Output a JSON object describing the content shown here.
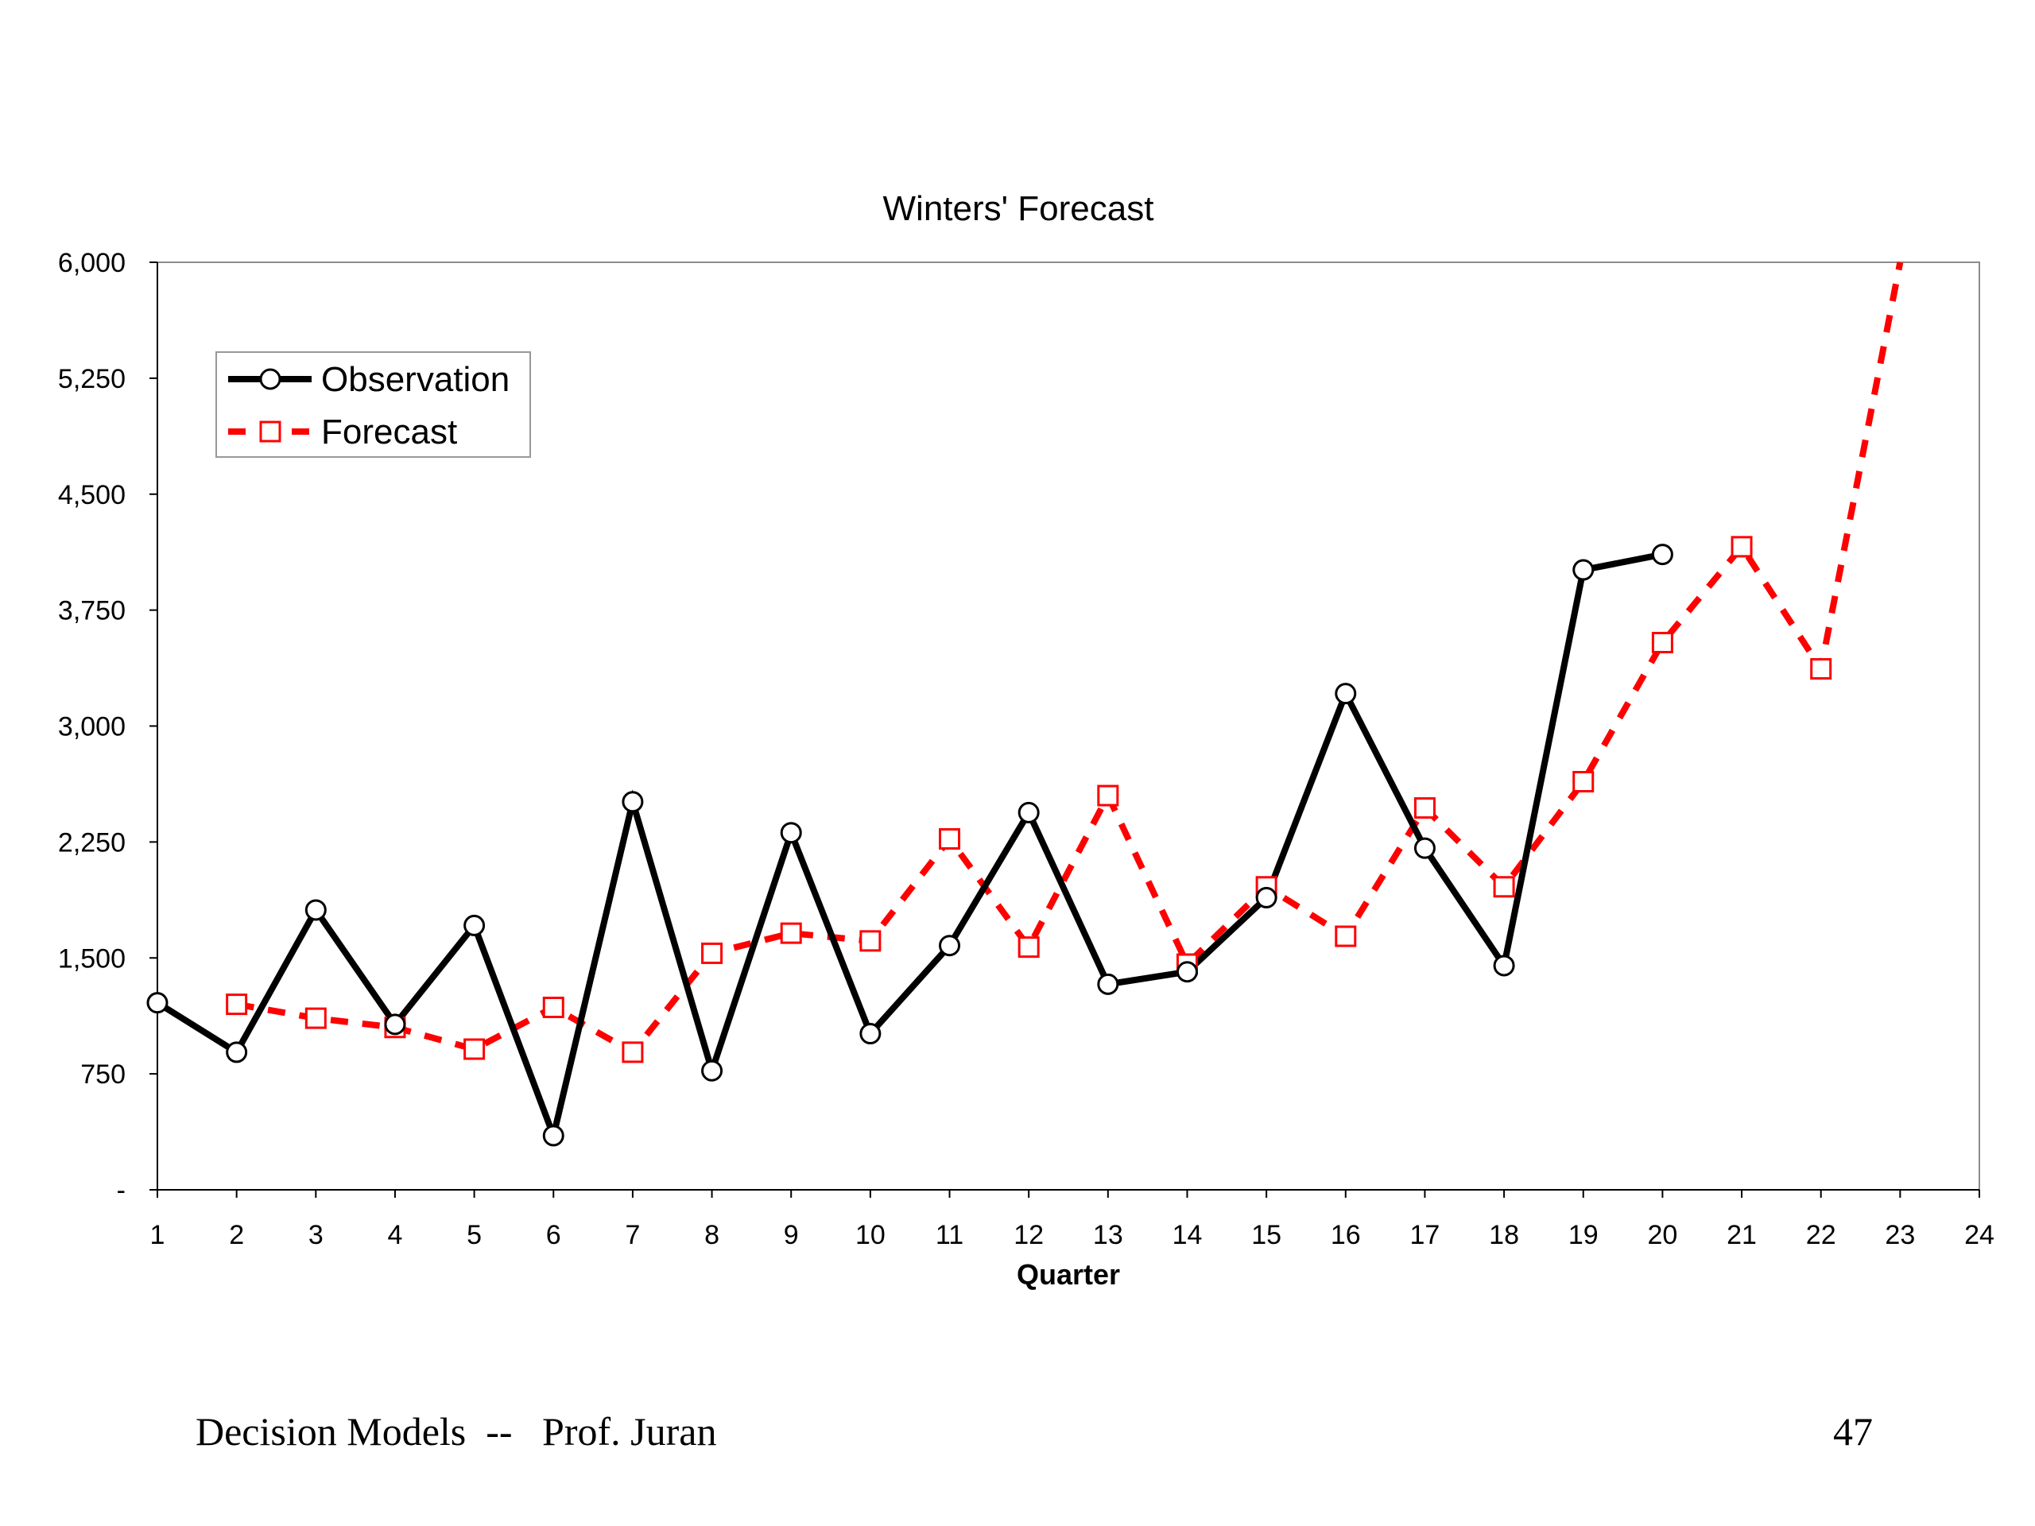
{
  "footer": {
    "left": "Decision Models  --   Prof. Juran",
    "page_number": "47"
  },
  "chart_data": {
    "type": "line",
    "title": "Winters' Forecast",
    "xlabel": "Quarter",
    "ylabel": "",
    "x": [
      1,
      2,
      3,
      4,
      5,
      6,
      7,
      8,
      9,
      10,
      11,
      12,
      13,
      14,
      15,
      16,
      17,
      18,
      19,
      20,
      21,
      22,
      23,
      24
    ],
    "xlim": [
      1,
      24
    ],
    "ylim": [
      0,
      6000
    ],
    "y_ticks": [
      0,
      750,
      1500,
      2250,
      3000,
      3750,
      4500,
      5250,
      6000
    ],
    "y_tick_labels": [
      "-",
      "750",
      "1,500",
      "2,250",
      "3,000",
      "3,750",
      "4,500",
      "5,250",
      "6,000"
    ],
    "x_tick_labels": [
      "1",
      "2",
      "3",
      "4",
      "5",
      "6",
      "7",
      "8",
      "9",
      "10",
      "11",
      "12",
      "13",
      "14",
      "15",
      "16",
      "17",
      "18",
      "19",
      "20",
      "21",
      "22",
      "23",
      "24"
    ],
    "grid": false,
    "legend_position": "top-left",
    "series": [
      {
        "name": "Observation",
        "color": "#000000",
        "line": "solid",
        "marker": "circle",
        "x": [
          1,
          2,
          3,
          4,
          5,
          6,
          7,
          8,
          9,
          10,
          11,
          12,
          13,
          14,
          15,
          16,
          17,
          18,
          19,
          20
        ],
        "values": [
          1210,
          890,
          1810,
          1070,
          1710,
          350,
          2510,
          770,
          2310,
          1010,
          1580,
          2440,
          1330,
          1410,
          1890,
          3210,
          2210,
          1450,
          4010,
          4110
        ]
      },
      {
        "name": "Forecast",
        "color": "#ff0000",
        "line": "dashed",
        "marker": "square",
        "x": [
          2,
          3,
          4,
          5,
          6,
          7,
          8,
          9,
          10,
          11,
          12,
          13,
          14,
          15,
          16,
          17,
          18,
          19,
          20,
          21,
          22,
          23
        ],
        "values": [
          1200,
          1110,
          1050,
          910,
          1180,
          890,
          1530,
          1660,
          1610,
          2270,
          1570,
          2550,
          1460,
          1960,
          1640,
          2470,
          1960,
          2640,
          3540,
          4160,
          3370,
          6000
        ],
        "marker_hidden_last": true
      }
    ]
  }
}
